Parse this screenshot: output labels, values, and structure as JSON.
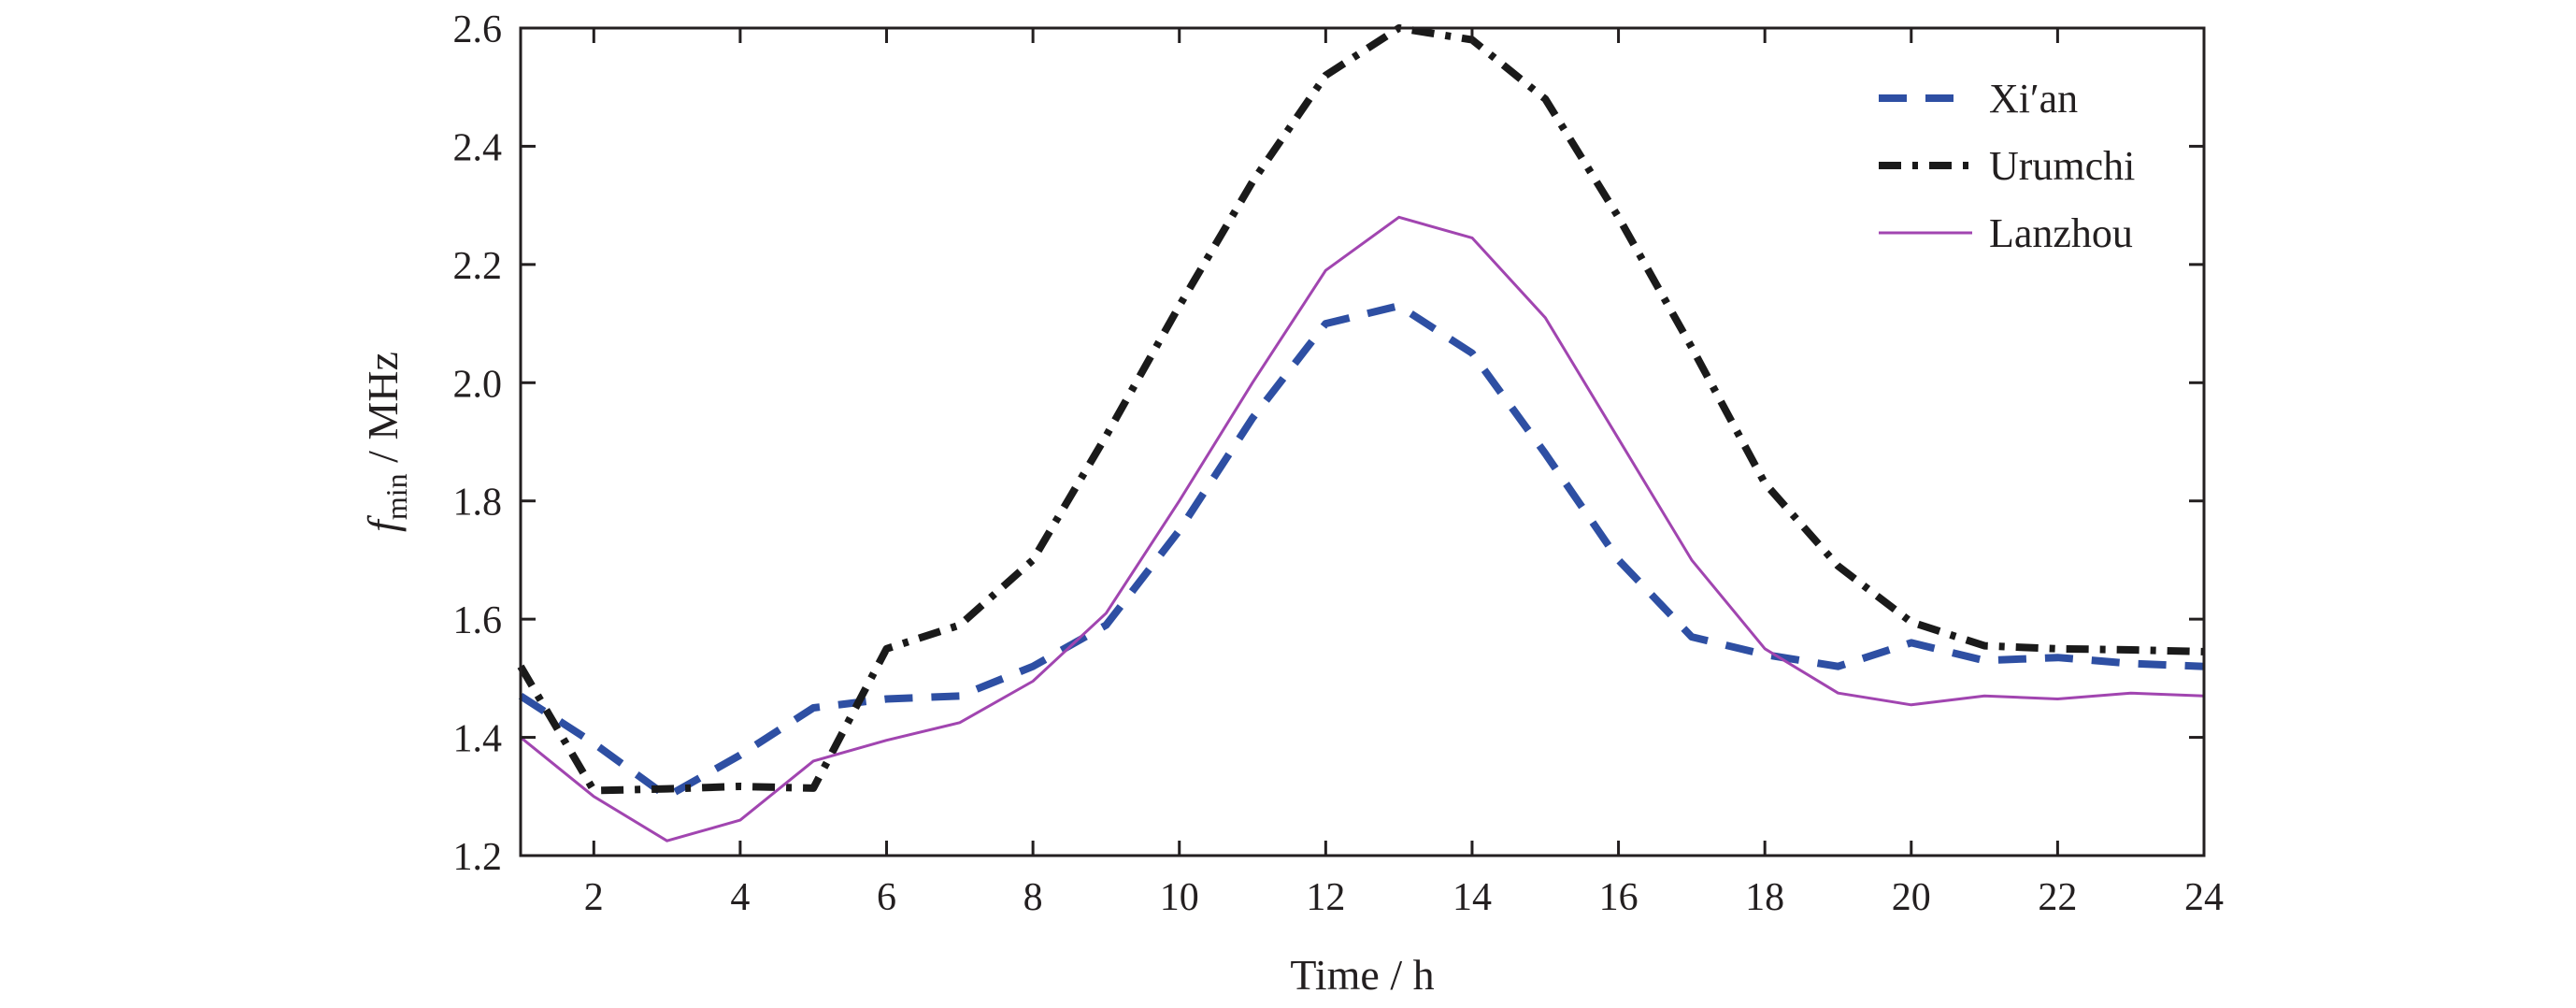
{
  "chart_data": {
    "type": "line",
    "xlabel": "Time / h",
    "ylabel_main": "f",
    "ylabel_sub": "min",
    "ylabel_unit": " / MHz",
    "xlim": [
      1,
      24
    ],
    "ylim": [
      1.2,
      2.6
    ],
    "xticks": [
      2,
      4,
      6,
      8,
      10,
      12,
      14,
      16,
      18,
      20,
      22,
      24
    ],
    "xtick_labels": [
      "2",
      "4",
      "6",
      "8",
      "10",
      "12",
      "14",
      "16",
      "18",
      "20",
      "22",
      "24"
    ],
    "yticks": [
      1.2,
      1.4,
      1.6,
      1.8,
      2.0,
      2.2,
      2.4,
      2.6
    ],
    "ytick_labels": [
      "1.2",
      "1.4",
      "1.6",
      "1.8",
      "2.0",
      "2.2",
      "2.4",
      "2.6"
    ],
    "grid": false,
    "legend_position": "top-right",
    "x": [
      1,
      2,
      3,
      4,
      5,
      6,
      7,
      8,
      9,
      10,
      11,
      12,
      13,
      14,
      15,
      16,
      17,
      18,
      19,
      20,
      21,
      22,
      23,
      24
    ],
    "series": [
      {
        "name": "Xi′an",
        "style": "dashed",
        "color": "#2e4fa3",
        "values": [
          1.47,
          1.39,
          1.3,
          1.37,
          1.45,
          1.465,
          1.47,
          1.52,
          1.59,
          1.75,
          1.94,
          2.1,
          2.13,
          2.05,
          1.88,
          1.7,
          1.57,
          1.54,
          1.52,
          1.56,
          1.53,
          1.535,
          1.525,
          1.52
        ]
      },
      {
        "name": "Urumchi",
        "style": "dashdot",
        "color": "#1a1a1a",
        "values": [
          1.52,
          1.31,
          1.313,
          1.317,
          1.314,
          1.55,
          1.59,
          1.7,
          1.91,
          2.13,
          2.34,
          2.52,
          2.6,
          2.58,
          2.48,
          2.28,
          2.06,
          1.83,
          1.69,
          1.595,
          1.555,
          1.55,
          1.548,
          1.545
        ]
      },
      {
        "name": "Lanzhou",
        "style": "solid",
        "color": "#a145b0",
        "values": [
          1.4,
          1.3,
          1.225,
          1.26,
          1.36,
          1.395,
          1.425,
          1.495,
          1.61,
          1.8,
          2.0,
          2.19,
          2.28,
          2.245,
          2.11,
          1.905,
          1.7,
          1.55,
          1.475,
          1.455,
          1.47,
          1.465,
          1.475,
          1.47
        ]
      }
    ]
  }
}
